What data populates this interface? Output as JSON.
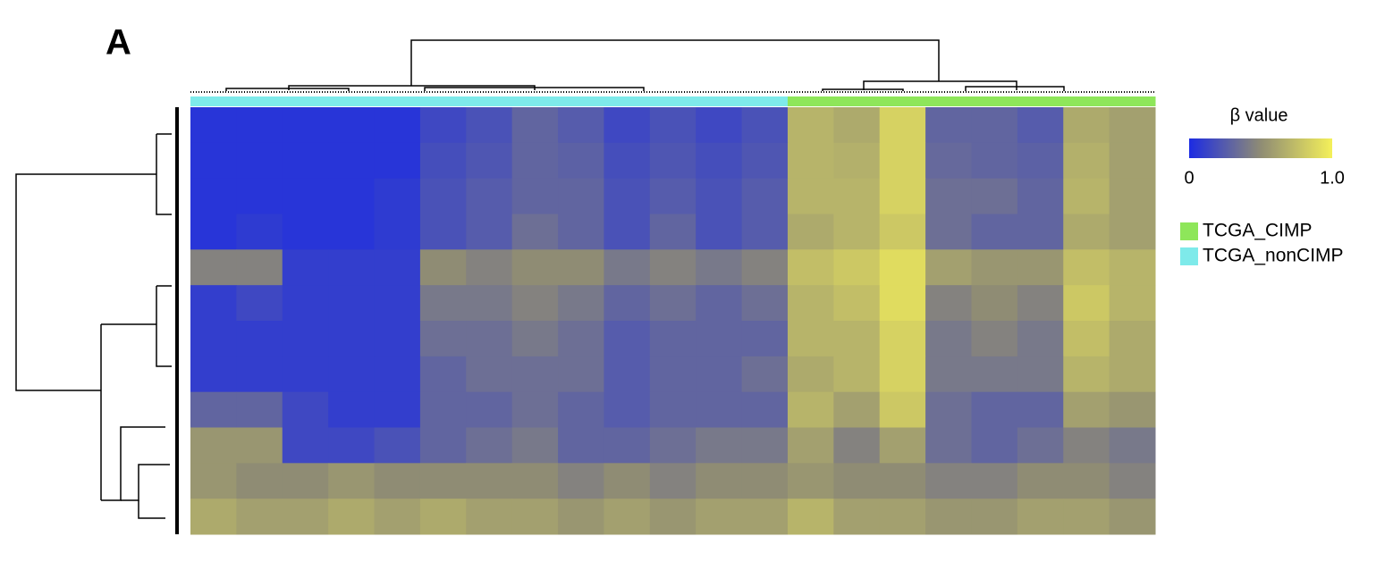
{
  "chart_data": {
    "type": "heatmap",
    "panel_label": "A",
    "colorbar_title": "β value",
    "colors": [
      "#1c2be3",
      "#8f8c74",
      "#f4f05a"
    ],
    "clim": [
      0,
      1
    ],
    "cticks": [
      0,
      {
        "value": 1,
        "label": "1.0"
      }
    ],
    "groups": [
      {
        "name": "TCGA_CIMP",
        "color": "#8ee65a"
      },
      {
        "name": "TCGA_nonCIMP",
        "color": "#7eeaea"
      }
    ],
    "column_group": [
      1,
      1,
      1,
      1,
      1,
      1,
      1,
      1,
      1,
      1,
      1,
      1,
      1,
      0,
      0,
      0,
      0,
      0,
      0,
      0,
      0
    ],
    "values": [
      [
        0.05,
        0.05,
        0.05,
        0.05,
        0.05,
        0.15,
        0.2,
        0.3,
        0.25,
        0.15,
        0.2,
        0.15,
        0.2,
        0.7,
        0.65,
        0.85,
        0.3,
        0.3,
        0.25,
        0.65,
        0.6
      ],
      [
        0.05,
        0.05,
        0.05,
        0.05,
        0.05,
        0.18,
        0.22,
        0.3,
        0.28,
        0.18,
        0.22,
        0.18,
        0.22,
        0.7,
        0.68,
        0.85,
        0.32,
        0.3,
        0.28,
        0.68,
        0.6
      ],
      [
        0.05,
        0.05,
        0.05,
        0.05,
        0.08,
        0.2,
        0.25,
        0.3,
        0.3,
        0.2,
        0.25,
        0.2,
        0.25,
        0.7,
        0.7,
        0.85,
        0.35,
        0.35,
        0.3,
        0.7,
        0.6
      ],
      [
        0.05,
        0.08,
        0.05,
        0.05,
        0.08,
        0.2,
        0.25,
        0.35,
        0.3,
        0.2,
        0.3,
        0.2,
        0.25,
        0.65,
        0.7,
        0.8,
        0.35,
        0.3,
        0.3,
        0.65,
        0.6
      ],
      [
        0.45,
        0.45,
        0.1,
        0.1,
        0.1,
        0.5,
        0.45,
        0.5,
        0.5,
        0.4,
        0.45,
        0.4,
        0.45,
        0.75,
        0.8,
        0.9,
        0.6,
        0.55,
        0.55,
        0.75,
        0.7
      ],
      [
        0.1,
        0.15,
        0.1,
        0.1,
        0.1,
        0.4,
        0.4,
        0.45,
        0.4,
        0.3,
        0.35,
        0.3,
        0.35,
        0.7,
        0.75,
        0.9,
        0.45,
        0.5,
        0.45,
        0.8,
        0.7
      ],
      [
        0.1,
        0.1,
        0.1,
        0.1,
        0.1,
        0.35,
        0.35,
        0.4,
        0.35,
        0.25,
        0.3,
        0.3,
        0.3,
        0.7,
        0.7,
        0.85,
        0.4,
        0.45,
        0.4,
        0.75,
        0.65
      ],
      [
        0.1,
        0.1,
        0.1,
        0.1,
        0.1,
        0.3,
        0.35,
        0.35,
        0.35,
        0.25,
        0.3,
        0.3,
        0.35,
        0.65,
        0.7,
        0.85,
        0.4,
        0.4,
        0.4,
        0.7,
        0.65
      ],
      [
        0.3,
        0.3,
        0.15,
        0.1,
        0.1,
        0.3,
        0.3,
        0.35,
        0.3,
        0.25,
        0.3,
        0.3,
        0.3,
        0.7,
        0.6,
        0.8,
        0.35,
        0.3,
        0.3,
        0.6,
        0.55
      ],
      [
        0.55,
        0.55,
        0.15,
        0.15,
        0.2,
        0.3,
        0.35,
        0.4,
        0.3,
        0.3,
        0.35,
        0.4,
        0.4,
        0.6,
        0.45,
        0.6,
        0.35,
        0.3,
        0.35,
        0.45,
        0.4
      ],
      [
        0.55,
        0.5,
        0.5,
        0.55,
        0.5,
        0.5,
        0.5,
        0.5,
        0.45,
        0.5,
        0.45,
        0.5,
        0.5,
        0.55,
        0.5,
        0.5,
        0.45,
        0.45,
        0.5,
        0.5,
        0.45
      ],
      [
        0.65,
        0.6,
        0.6,
        0.65,
        0.6,
        0.65,
        0.6,
        0.6,
        0.55,
        0.6,
        0.55,
        0.6,
        0.6,
        0.7,
        0.6,
        0.6,
        0.55,
        0.55,
        0.6,
        0.6,
        0.55
      ]
    ]
  }
}
